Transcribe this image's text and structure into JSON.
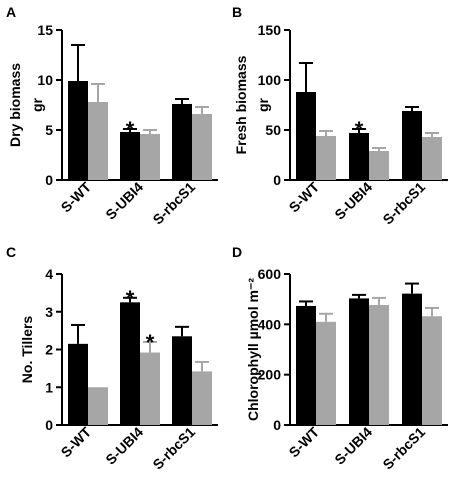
{
  "figure": {
    "panels": [
      "A",
      "B",
      "C",
      "D"
    ]
  },
  "chart_data": [
    {
      "type": "bar",
      "panel": "A",
      "ylabel_lines": [
        "Dry biomass",
        "gr"
      ],
      "ylim": [
        0,
        15
      ],
      "yticks": [
        0,
        5,
        10,
        15
      ],
      "categories": [
        "S-WT",
        "S-UBI4",
        "S-rbcS1"
      ],
      "series": [
        {
          "color": "#000000",
          "values": [
            9.9,
            4.8,
            7.6
          ],
          "errors": [
            3.6,
            0.3,
            0.5
          ]
        },
        {
          "color": "#a6a6a6",
          "values": [
            7.8,
            4.6,
            6.6
          ],
          "errors": [
            1.8,
            0.4,
            0.7
          ]
        }
      ],
      "significance": [
        {
          "series": 0,
          "category": 1,
          "label": "*"
        }
      ]
    },
    {
      "type": "bar",
      "panel": "B",
      "ylabel_lines": [
        "Fresh biomass",
        "gr"
      ],
      "ylim": [
        0,
        150
      ],
      "yticks": [
        0,
        50,
        100,
        150
      ],
      "categories": [
        "S-WT",
        "S-UBI4",
        "S-rbcS1"
      ],
      "series": [
        {
          "color": "#000000",
          "values": [
            88,
            47,
            69
          ],
          "errors": [
            29,
            4,
            4
          ]
        },
        {
          "color": "#a6a6a6",
          "values": [
            44,
            29,
            43
          ],
          "errors": [
            5,
            3,
            4
          ]
        }
      ],
      "significance": [
        {
          "series": 0,
          "category": 1,
          "label": "*"
        }
      ]
    },
    {
      "type": "bar",
      "panel": "C",
      "ylabel_lines": [
        "No. Tillers"
      ],
      "ylim": [
        0,
        4
      ],
      "yticks": [
        0,
        1,
        2,
        3,
        4
      ],
      "categories": [
        "S-WT",
        "S-UBI4",
        "S-rbcS1"
      ],
      "series": [
        {
          "color": "#000000",
          "values": [
            2.15,
            3.25,
            2.35
          ],
          "errors": [
            0.5,
            0.12,
            0.25
          ]
        },
        {
          "color": "#a6a6a6",
          "values": [
            1.0,
            1.92,
            1.42
          ],
          "errors": [
            0.0,
            0.28,
            0.25
          ]
        }
      ],
      "significance": [
        {
          "series": 0,
          "category": 1,
          "label": "*"
        },
        {
          "series": 1,
          "category": 1,
          "label": "*"
        }
      ]
    },
    {
      "type": "bar",
      "panel": "D",
      "ylabel_lines": [
        "Chlorophyll µmol m⁻²"
      ],
      "ylim": [
        0,
        600
      ],
      "yticks": [
        0,
        200,
        400,
        600
      ],
      "categories": [
        "S-WT",
        "S-UBI4",
        "S-rbcS1"
      ],
      "series": [
        {
          "color": "#000000",
          "values": [
            473,
            503,
            522
          ],
          "errors": [
            18,
            14,
            40
          ]
        },
        {
          "color": "#a6a6a6",
          "values": [
            410,
            477,
            432
          ],
          "errors": [
            32,
            28,
            33
          ]
        }
      ],
      "significance": []
    }
  ]
}
